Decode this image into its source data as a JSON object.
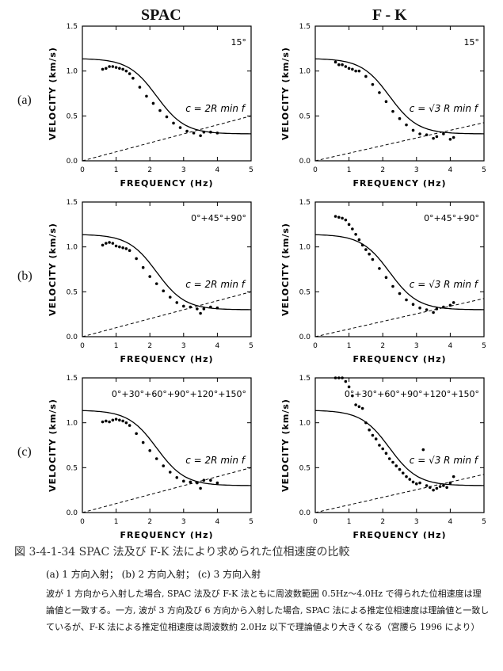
{
  "column_titles": [
    "SPAC",
    "F - K"
  ],
  "row_labels": [
    "(a)",
    "(b)",
    "(c)"
  ],
  "caption": {
    "title": "図 3-4-1-34 SPAC 法及び F-K 法により求められた位相速度の比較",
    "subtitle": "(a) 1 方向入射； (b) 2 方向入射； (c) 3 方向入射",
    "body": "波が 1 方向から入射した場合, SPAC 法及び F-K 法ともに周波数範囲 0.5Hz〜4.0Hz で得られた位相速度は理論値と一致する。一方, 波が 3 方向及び 6 方向から入射した場合, SPAC 法による推定位相速度は理論値と一致しているが、F-K 法による推定位相速度は周波数約 2.0Hz 以下で理論値より大きくなる（宮腰ら 1996 により）"
  },
  "chart_data": [
    {
      "type": "scatter",
      "panel": "a-spac",
      "direction_label": "15°",
      "formula_label": "c = 2R min f",
      "xlabel": "FREQUENCY (Hz)",
      "ylabel": "VELOCITY (km/s)",
      "xlim": [
        0,
        5
      ],
      "ylim": [
        0,
        1.5
      ],
      "x_ticks": [
        "0",
        "1",
        "2",
        "3",
        "4",
        "5"
      ],
      "y_ticks": [
        "0.0",
        "0.5",
        "1.0",
        "1.5"
      ],
      "points": [
        [
          0.6,
          1.02
        ],
        [
          0.7,
          1.03
        ],
        [
          0.8,
          1.05
        ],
        [
          0.9,
          1.05
        ],
        [
          1.0,
          1.04
        ],
        [
          1.1,
          1.03
        ],
        [
          1.2,
          1.02
        ],
        [
          1.3,
          1.0
        ],
        [
          1.4,
          0.97
        ],
        [
          1.5,
          0.92
        ],
        [
          1.7,
          0.82
        ],
        [
          1.9,
          0.72
        ],
        [
          2.1,
          0.64
        ],
        [
          2.3,
          0.56
        ],
        [
          2.5,
          0.49
        ],
        [
          2.7,
          0.42
        ],
        [
          2.9,
          0.37
        ],
        [
          3.1,
          0.33
        ],
        [
          3.3,
          0.31
        ],
        [
          3.5,
          0.28
        ],
        [
          3.6,
          0.32
        ],
        [
          3.8,
          0.32
        ],
        [
          4.0,
          0.31
        ]
      ]
    },
    {
      "type": "scatter",
      "panel": "a-fk",
      "direction_label": "15°",
      "formula_label": "c = √3 R min f",
      "xlabel": "FREQUENCY (Hz)",
      "ylabel": "VELOCITY (km/s)",
      "xlim": [
        0,
        5
      ],
      "ylim": [
        0,
        1.5
      ],
      "x_ticks": [
        "0",
        "1",
        "2",
        "3",
        "4",
        "5"
      ],
      "y_ticks": [
        "0.0",
        "0.5",
        "1.0",
        "1.5"
      ],
      "points": [
        [
          0.6,
          1.1
        ],
        [
          0.7,
          1.07
        ],
        [
          0.8,
          1.07
        ],
        [
          0.9,
          1.05
        ],
        [
          1.0,
          1.03
        ],
        [
          1.1,
          1.02
        ],
        [
          1.2,
          1.0
        ],
        [
          1.3,
          1.0
        ],
        [
          1.5,
          0.94
        ],
        [
          1.7,
          0.85
        ],
        [
          1.9,
          0.76
        ],
        [
          2.1,
          0.66
        ],
        [
          2.3,
          0.55
        ],
        [
          2.5,
          0.47
        ],
        [
          2.7,
          0.4
        ],
        [
          2.9,
          0.34
        ],
        [
          3.1,
          0.3
        ],
        [
          3.3,
          0.29
        ],
        [
          3.5,
          0.25
        ],
        [
          3.6,
          0.27
        ],
        [
          3.8,
          0.3
        ],
        [
          4.0,
          0.24
        ],
        [
          4.1,
          0.26
        ]
      ]
    },
    {
      "type": "scatter",
      "panel": "b-spac",
      "direction_label": "0°+45°+90°",
      "formula_label": "c = 2R min f",
      "xlabel": "FREQUENCY (Hz)",
      "ylabel": "VELOCITY (km/s)",
      "xlim": [
        0,
        5
      ],
      "ylim": [
        0,
        1.5
      ],
      "x_ticks": [
        "0",
        "1",
        "2",
        "3",
        "4",
        "5"
      ],
      "y_ticks": [
        "0.0",
        "0.5",
        "1.0",
        "1.5"
      ],
      "points": [
        [
          0.6,
          1.02
        ],
        [
          0.7,
          1.04
        ],
        [
          0.8,
          1.05
        ],
        [
          0.9,
          1.04
        ],
        [
          1.0,
          1.01
        ],
        [
          1.1,
          1.0
        ],
        [
          1.2,
          0.99
        ],
        [
          1.3,
          0.98
        ],
        [
          1.4,
          0.96
        ],
        [
          1.6,
          0.87
        ],
        [
          1.8,
          0.77
        ],
        [
          2.0,
          0.67
        ],
        [
          2.2,
          0.59
        ],
        [
          2.4,
          0.51
        ],
        [
          2.6,
          0.44
        ],
        [
          2.8,
          0.38
        ],
        [
          3.0,
          0.34
        ],
        [
          3.2,
          0.33
        ],
        [
          3.4,
          0.31
        ],
        [
          3.5,
          0.26
        ],
        [
          3.6,
          0.31
        ],
        [
          3.8,
          0.33
        ],
        [
          4.0,
          0.32
        ]
      ]
    },
    {
      "type": "scatter",
      "panel": "b-fk",
      "direction_label": "0°+45°+90°",
      "formula_label": "c = √3 R min f",
      "xlabel": "FREQUENCY (Hz)",
      "ylabel": "VELOCITY (km/s)",
      "xlim": [
        0,
        5
      ],
      "ylim": [
        0,
        1.5
      ],
      "x_ticks": [
        "0",
        "1",
        "2",
        "3",
        "4",
        "5"
      ],
      "y_ticks": [
        "0.0",
        "0.5",
        "1.0",
        "1.5"
      ],
      "points": [
        [
          0.6,
          1.34
        ],
        [
          0.7,
          1.33
        ],
        [
          0.8,
          1.32
        ],
        [
          0.9,
          1.3
        ],
        [
          1.0,
          1.25
        ],
        [
          1.1,
          1.2
        ],
        [
          1.2,
          1.14
        ],
        [
          1.3,
          1.08
        ],
        [
          1.4,
          1.02
        ],
        [
          1.5,
          0.97
        ],
        [
          1.6,
          0.92
        ],
        [
          1.7,
          0.86
        ],
        [
          1.9,
          0.76
        ],
        [
          2.1,
          0.66
        ],
        [
          2.3,
          0.56
        ],
        [
          2.5,
          0.48
        ],
        [
          2.7,
          0.41
        ],
        [
          2.9,
          0.36
        ],
        [
          3.1,
          0.32
        ],
        [
          3.3,
          0.3
        ],
        [
          3.5,
          0.27
        ],
        [
          3.6,
          0.31
        ],
        [
          3.8,
          0.33
        ],
        [
          4.0,
          0.35
        ],
        [
          4.1,
          0.38
        ]
      ]
    },
    {
      "type": "scatter",
      "panel": "c-spac",
      "direction_label": "0°+30°+60°+90°+120°+150°",
      "formula_label": "c = 2R min f",
      "xlabel": "FREQUENCY (Hz)",
      "ylabel": "VELOCITY (km/s)",
      "xlim": [
        0,
        5
      ],
      "ylim": [
        0,
        1.5
      ],
      "x_ticks": [
        "0",
        "1",
        "2",
        "3",
        "4",
        "5"
      ],
      "y_ticks": [
        "0.0",
        "0.5",
        "1.0",
        "1.5"
      ],
      "points": [
        [
          0.6,
          1.01
        ],
        [
          0.7,
          1.02
        ],
        [
          0.8,
          1.01
        ],
        [
          0.9,
          1.03
        ],
        [
          1.0,
          1.04
        ],
        [
          1.1,
          1.03
        ],
        [
          1.2,
          1.02
        ],
        [
          1.3,
          1.0
        ],
        [
          1.4,
          0.97
        ],
        [
          1.6,
          0.88
        ],
        [
          1.8,
          0.78
        ],
        [
          2.0,
          0.69
        ],
        [
          2.2,
          0.6
        ],
        [
          2.4,
          0.52
        ],
        [
          2.6,
          0.45
        ],
        [
          2.8,
          0.39
        ],
        [
          3.0,
          0.35
        ],
        [
          3.2,
          0.34
        ],
        [
          3.4,
          0.33
        ],
        [
          3.5,
          0.27
        ],
        [
          3.6,
          0.36
        ],
        [
          3.8,
          0.36
        ],
        [
          4.0,
          0.33
        ]
      ]
    },
    {
      "type": "scatter",
      "panel": "c-fk",
      "direction_label": "0°+30°+60°+90°+120°+150°",
      "formula_label": "c = √3 R min f",
      "xlabel": "FREQUENCY (Hz)",
      "ylabel": "VELOCITY (km/s)",
      "xlim": [
        0,
        5
      ],
      "ylim": [
        0,
        1.5
      ],
      "x_ticks": [
        "0",
        "1",
        "2",
        "3",
        "4",
        "5"
      ],
      "y_ticks": [
        "0.0",
        "0.5",
        "1.0",
        "1.5"
      ],
      "points": [
        [
          0.6,
          1.52
        ],
        [
          0.7,
          1.52
        ],
        [
          0.8,
          1.52
        ],
        [
          0.9,
          1.46
        ],
        [
          1.0,
          1.4
        ],
        [
          1.1,
          1.3
        ],
        [
          1.2,
          1.2
        ],
        [
          1.3,
          1.18
        ],
        [
          1.4,
          1.16
        ],
        [
          1.5,
          1.0
        ],
        [
          1.6,
          0.92
        ],
        [
          1.7,
          0.86
        ],
        [
          1.8,
          0.82
        ],
        [
          1.9,
          0.75
        ],
        [
          2.0,
          0.71
        ],
        [
          2.1,
          0.66
        ],
        [
          2.2,
          0.6
        ],
        [
          2.3,
          0.56
        ],
        [
          2.4,
          0.52
        ],
        [
          2.5,
          0.48
        ],
        [
          2.6,
          0.44
        ],
        [
          2.7,
          0.4
        ],
        [
          2.8,
          0.37
        ],
        [
          2.9,
          0.34
        ],
        [
          3.0,
          0.32
        ],
        [
          3.1,
          0.33
        ],
        [
          3.2,
          0.7
        ],
        [
          3.3,
          0.3
        ],
        [
          3.4,
          0.28
        ],
        [
          3.5,
          0.25
        ],
        [
          3.6,
          0.27
        ],
        [
          3.7,
          0.29
        ],
        [
          3.8,
          0.3
        ],
        [
          3.9,
          0.28
        ],
        [
          4.0,
          0.33
        ],
        [
          4.1,
          0.4
        ]
      ]
    }
  ]
}
